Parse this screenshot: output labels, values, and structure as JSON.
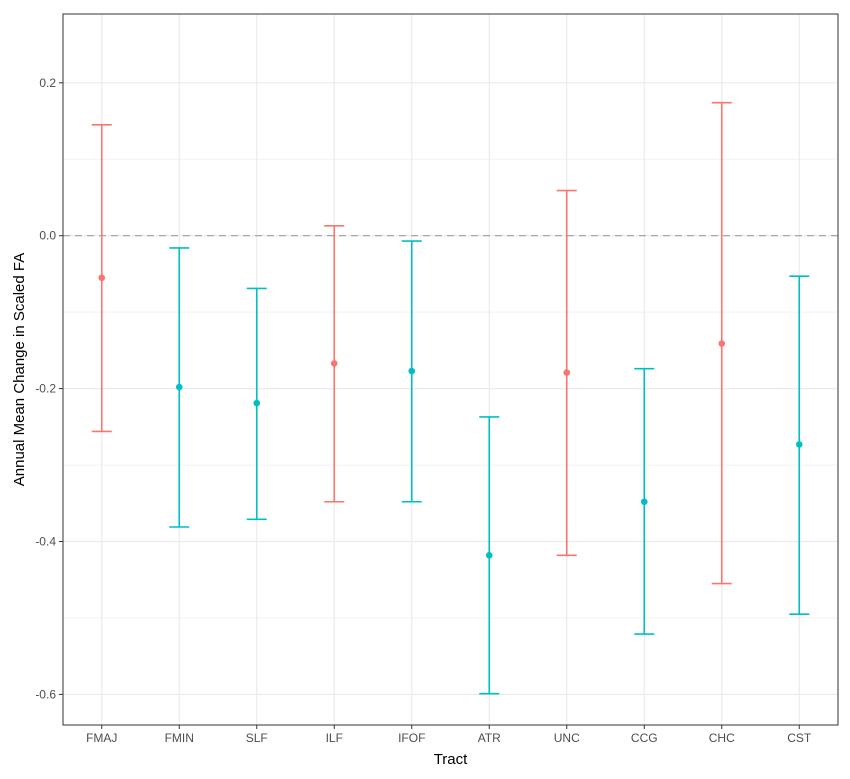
{
  "chart_data": {
    "type": "errorbar",
    "xlabel": "Tract",
    "ylabel": "Annual Mean Change in Scaled FA",
    "categories": [
      "FMAJ",
      "FMIN",
      "SLF",
      "ILF",
      "IFOF",
      "ATR",
      "UNC",
      "CCG",
      "CHC",
      "CST"
    ],
    "estimates": [
      -0.055,
      -0.198,
      -0.219,
      -0.167,
      -0.177,
      -0.418,
      -0.179,
      -0.348,
      -0.141,
      -0.273
    ],
    "lower": [
      -0.256,
      -0.381,
      -0.371,
      -0.348,
      -0.348,
      -0.599,
      -0.418,
      -0.521,
      -0.455,
      -0.495
    ],
    "upper": [
      0.145,
      -0.016,
      -0.069,
      0.013,
      -0.007,
      -0.237,
      0.059,
      -0.174,
      0.174,
      -0.053
    ],
    "ylim": [
      -0.64,
      0.29
    ],
    "yticks": [
      -0.6,
      -0.4,
      -0.2,
      0.0,
      0.2
    ],
    "ytick_labels": [
      "-0.6",
      "-0.4",
      "-0.2",
      "0.0",
      "0.2"
    ],
    "reference_line": 0,
    "grid": true,
    "colors": {
      "crosses_zero": "#F8766D",
      "below_zero": "#00BFC4"
    }
  }
}
